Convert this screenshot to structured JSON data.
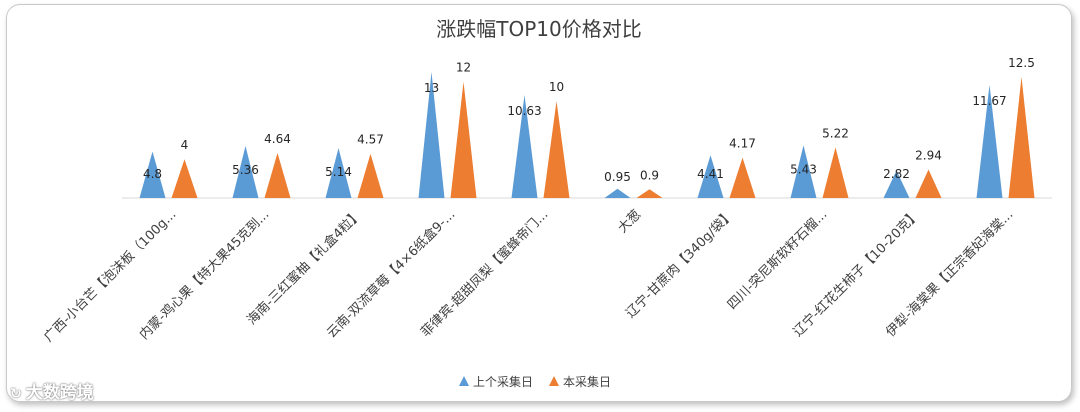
{
  "chart_data": {
    "type": "bar",
    "mark_shape": "triangle",
    "title": "涨跌幅TOP10价格对比",
    "categories": [
      "广西-小台芒【泡沫板（100g...",
      "内蒙-鸡心果【特大果45克到...",
      "海南-三红蜜柚【礼盒4粒】",
      "云南-双流草莓【4×6纸盒9-...",
      "菲律宾-超甜凤梨【蜜蜂帝门...",
      "大葱",
      "辽宁-甘蔗肉【340g/袋】",
      "四川-突尼斯软籽石榴...",
      "辽宁-红花生柿子【10-20克】",
      "伊犁-海棠果【正宗香妃海棠..."
    ],
    "series": [
      {
        "name": "上个采集日",
        "color": "#5b9bd5",
        "values": [
          4.8,
          5.36,
          5.14,
          13,
          10.63,
          0.95,
          4.41,
          5.43,
          2.82,
          11.67
        ],
        "labels": [
          "4.8",
          "5.36",
          "5.14",
          "13",
          "10.63",
          "0.95",
          "4.41",
          "5.43",
          "2.82",
          "11.67"
        ]
      },
      {
        "name": "本采集日",
        "color": "#ed7d31",
        "values": [
          4,
          4.64,
          4.57,
          12,
          10,
          0.9,
          4.17,
          5.22,
          2.94,
          12.5
        ],
        "labels": [
          "4",
          "4.64",
          "4.57",
          "12",
          "10",
          "0.9",
          "4.17",
          "5.22",
          "2.94",
          "12.5"
        ]
      }
    ],
    "ylim": [
      0,
      13
    ],
    "grid": false,
    "legend_position": "bottom"
  },
  "watermark": {
    "text": "大数跨境"
  }
}
